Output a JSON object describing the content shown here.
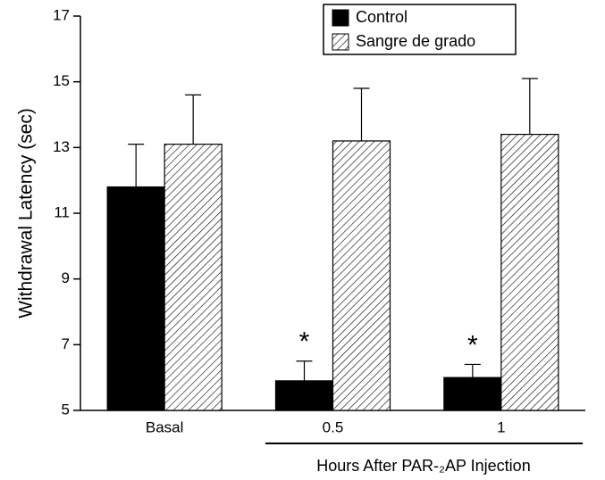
{
  "chart_data": {
    "type": "bar",
    "y_label": "Withdrawal Latency (sec)",
    "x_label": "Hours After PAR-₂AP Injection",
    "categories": [
      "Basal",
      "0.5",
      "1"
    ],
    "series": [
      {
        "name": "Control",
        "color": "#000000",
        "values": [
          11.8,
          5.9,
          6.0
        ],
        "errors": [
          1.3,
          0.6,
          0.4
        ]
      },
      {
        "name": "Sangre de grado",
        "color": "#000000",
        "pattern": "hatch",
        "values": [
          13.1,
          13.2,
          13.4
        ],
        "errors": [
          1.5,
          1.6,
          1.7
        ]
      }
    ],
    "annotations": [
      {
        "text": "*",
        "category": "0.5"
      },
      {
        "text": "*",
        "category": "1"
      }
    ],
    "ylim": [
      5,
      17
    ],
    "yticks": [
      5,
      7,
      9,
      11,
      13,
      15,
      17
    ],
    "legend": "top-right"
  }
}
